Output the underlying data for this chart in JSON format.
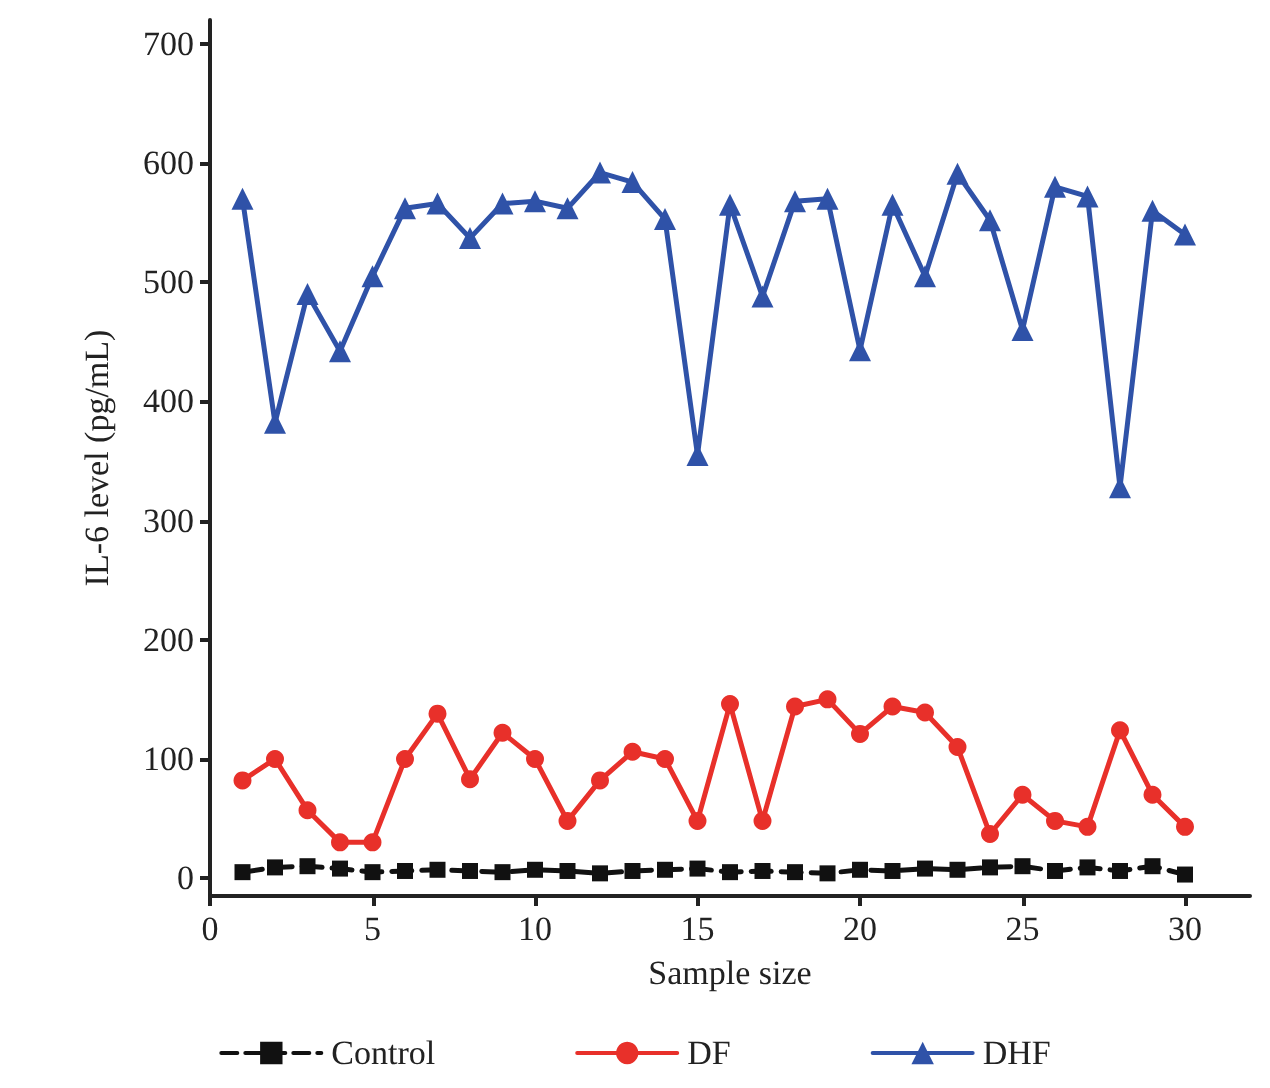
{
  "chart_data": {
    "type": "line",
    "xlabel": "Sample size",
    "ylabel": "IL-6 level (pg/mL)",
    "x": [
      1,
      2,
      3,
      4,
      5,
      6,
      7,
      8,
      9,
      10,
      11,
      12,
      13,
      14,
      15,
      16,
      17,
      18,
      19,
      20,
      21,
      22,
      23,
      24,
      25,
      26,
      27,
      28,
      29,
      30
    ],
    "xlim": [
      0,
      32
    ],
    "xticks": [
      0,
      5,
      10,
      15,
      20,
      25,
      30
    ],
    "ylim": [
      -15,
      720
    ],
    "yticks": [
      0,
      100,
      200,
      300,
      400,
      500,
      600,
      700
    ],
    "grid": false,
    "legend": "bottom",
    "series": [
      {
        "name": "Control",
        "color": "#111111",
        "marker": "square",
        "line_style": "dashed",
        "values": [
          5,
          9,
          10,
          8,
          5,
          6,
          7,
          6,
          5,
          7,
          6,
          4,
          6,
          7,
          8,
          5,
          6,
          5,
          4,
          7,
          6,
          8,
          7,
          9,
          10,
          6,
          9,
          6,
          10,
          3
        ]
      },
      {
        "name": "DF",
        "color": "#e8302a",
        "marker": "circle",
        "line_style": "solid",
        "values": [
          82,
          100,
          57,
          30,
          30,
          100,
          138,
          83,
          122,
          100,
          48,
          82,
          106,
          100,
          48,
          146,
          48,
          144,
          150,
          121,
          144,
          139,
          110,
          37,
          70,
          48,
          43,
          124,
          70,
          43
        ]
      },
      {
        "name": "DHF",
        "color": "#2f52a8",
        "marker": "triangle",
        "line_style": "solid",
        "values": [
          570,
          382,
          490,
          442,
          505,
          562,
          566,
          537,
          566,
          568,
          562,
          592,
          584,
          553,
          355,
          565,
          488,
          568,
          570,
          443,
          565,
          505,
          591,
          552,
          460,
          580,
          572,
          328,
          560,
          540
        ]
      }
    ]
  }
}
